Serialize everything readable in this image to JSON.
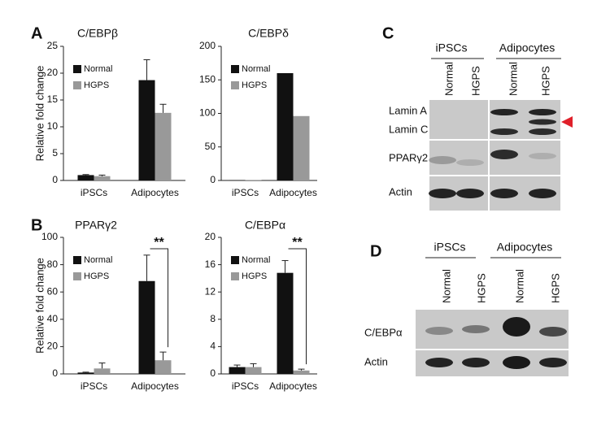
{
  "panel_labels": [
    "A",
    "B",
    "C",
    "D"
  ],
  "chart_data": [
    {
      "type": "bar",
      "title": "C/EBPβ",
      "y_label": "Relative fold change",
      "categories": [
        "iPSCs",
        "Adipocytes"
      ],
      "series": [
        {
          "name": "Normal",
          "color": "#111111",
          "values": [
            1.0,
            18.7
          ],
          "errors": [
            0.1,
            3.8
          ]
        },
        {
          "name": "HGPS",
          "color": "#999999",
          "values": [
            0.8,
            12.6
          ],
          "errors": [
            0.2,
            1.6
          ]
        }
      ],
      "ylim": [
        0,
        25
      ],
      "yticks": [
        0,
        5,
        10,
        15,
        20,
        25
      ]
    },
    {
      "type": "bar",
      "title": "C/EBPδ",
      "categories": [
        "iPSCs",
        "Adipocytes"
      ],
      "series": [
        {
          "name": "Normal",
          "color": "#111111",
          "values": [
            0.5,
            160
          ]
        },
        {
          "name": "HGPS",
          "color": "#999999",
          "values": [
            0.5,
            96
          ]
        }
      ],
      "ylim": [
        0,
        200
      ],
      "yticks": [
        0,
        50,
        100,
        150,
        200
      ]
    },
    {
      "type": "bar",
      "title": "PPARγ2",
      "y_label": "Relative fold change",
      "significance": "**",
      "categories": [
        "iPSCs",
        "Adipocytes"
      ],
      "series": [
        {
          "name": "Normal",
          "color": "#111111",
          "values": [
            1,
            68
          ],
          "errors": [
            0.3,
            19
          ]
        },
        {
          "name": "HGPS",
          "color": "#999999",
          "values": [
            4,
            10
          ],
          "errors": [
            4,
            6
          ]
        }
      ],
      "ylim": [
        0,
        100
      ],
      "yticks": [
        0,
        20,
        40,
        60,
        80,
        100
      ]
    },
    {
      "type": "bar",
      "title": "C/EBPα",
      "significance": "**",
      "categories": [
        "iPSCs",
        "Adipocytes"
      ],
      "series": [
        {
          "name": "Normal",
          "color": "#111111",
          "values": [
            1.0,
            14.8
          ],
          "errors": [
            0.3,
            1.8
          ]
        },
        {
          "name": "HGPS",
          "color": "#999999",
          "values": [
            1.0,
            0.5
          ],
          "errors": [
            0.5,
            0.2
          ]
        }
      ],
      "ylim": [
        0,
        20
      ],
      "yticks": [
        0,
        4,
        8,
        12,
        16,
        20
      ]
    }
  ],
  "blot_c": {
    "groups": [
      "iPSCs",
      "Adipocytes"
    ],
    "lanes": [
      "Normal",
      "HGPS",
      "Normal",
      "HGPS"
    ],
    "rows": [
      "Lamin A",
      "Lamin C",
      "PPARγ2",
      "Actin"
    ]
  },
  "blot_d": {
    "groups": [
      "iPSCs",
      "Adipocytes"
    ],
    "lanes": [
      "Normal",
      "HGPS",
      "Normal",
      "HGPS"
    ],
    "rows": [
      "C/EBPα",
      "Actin"
    ]
  }
}
